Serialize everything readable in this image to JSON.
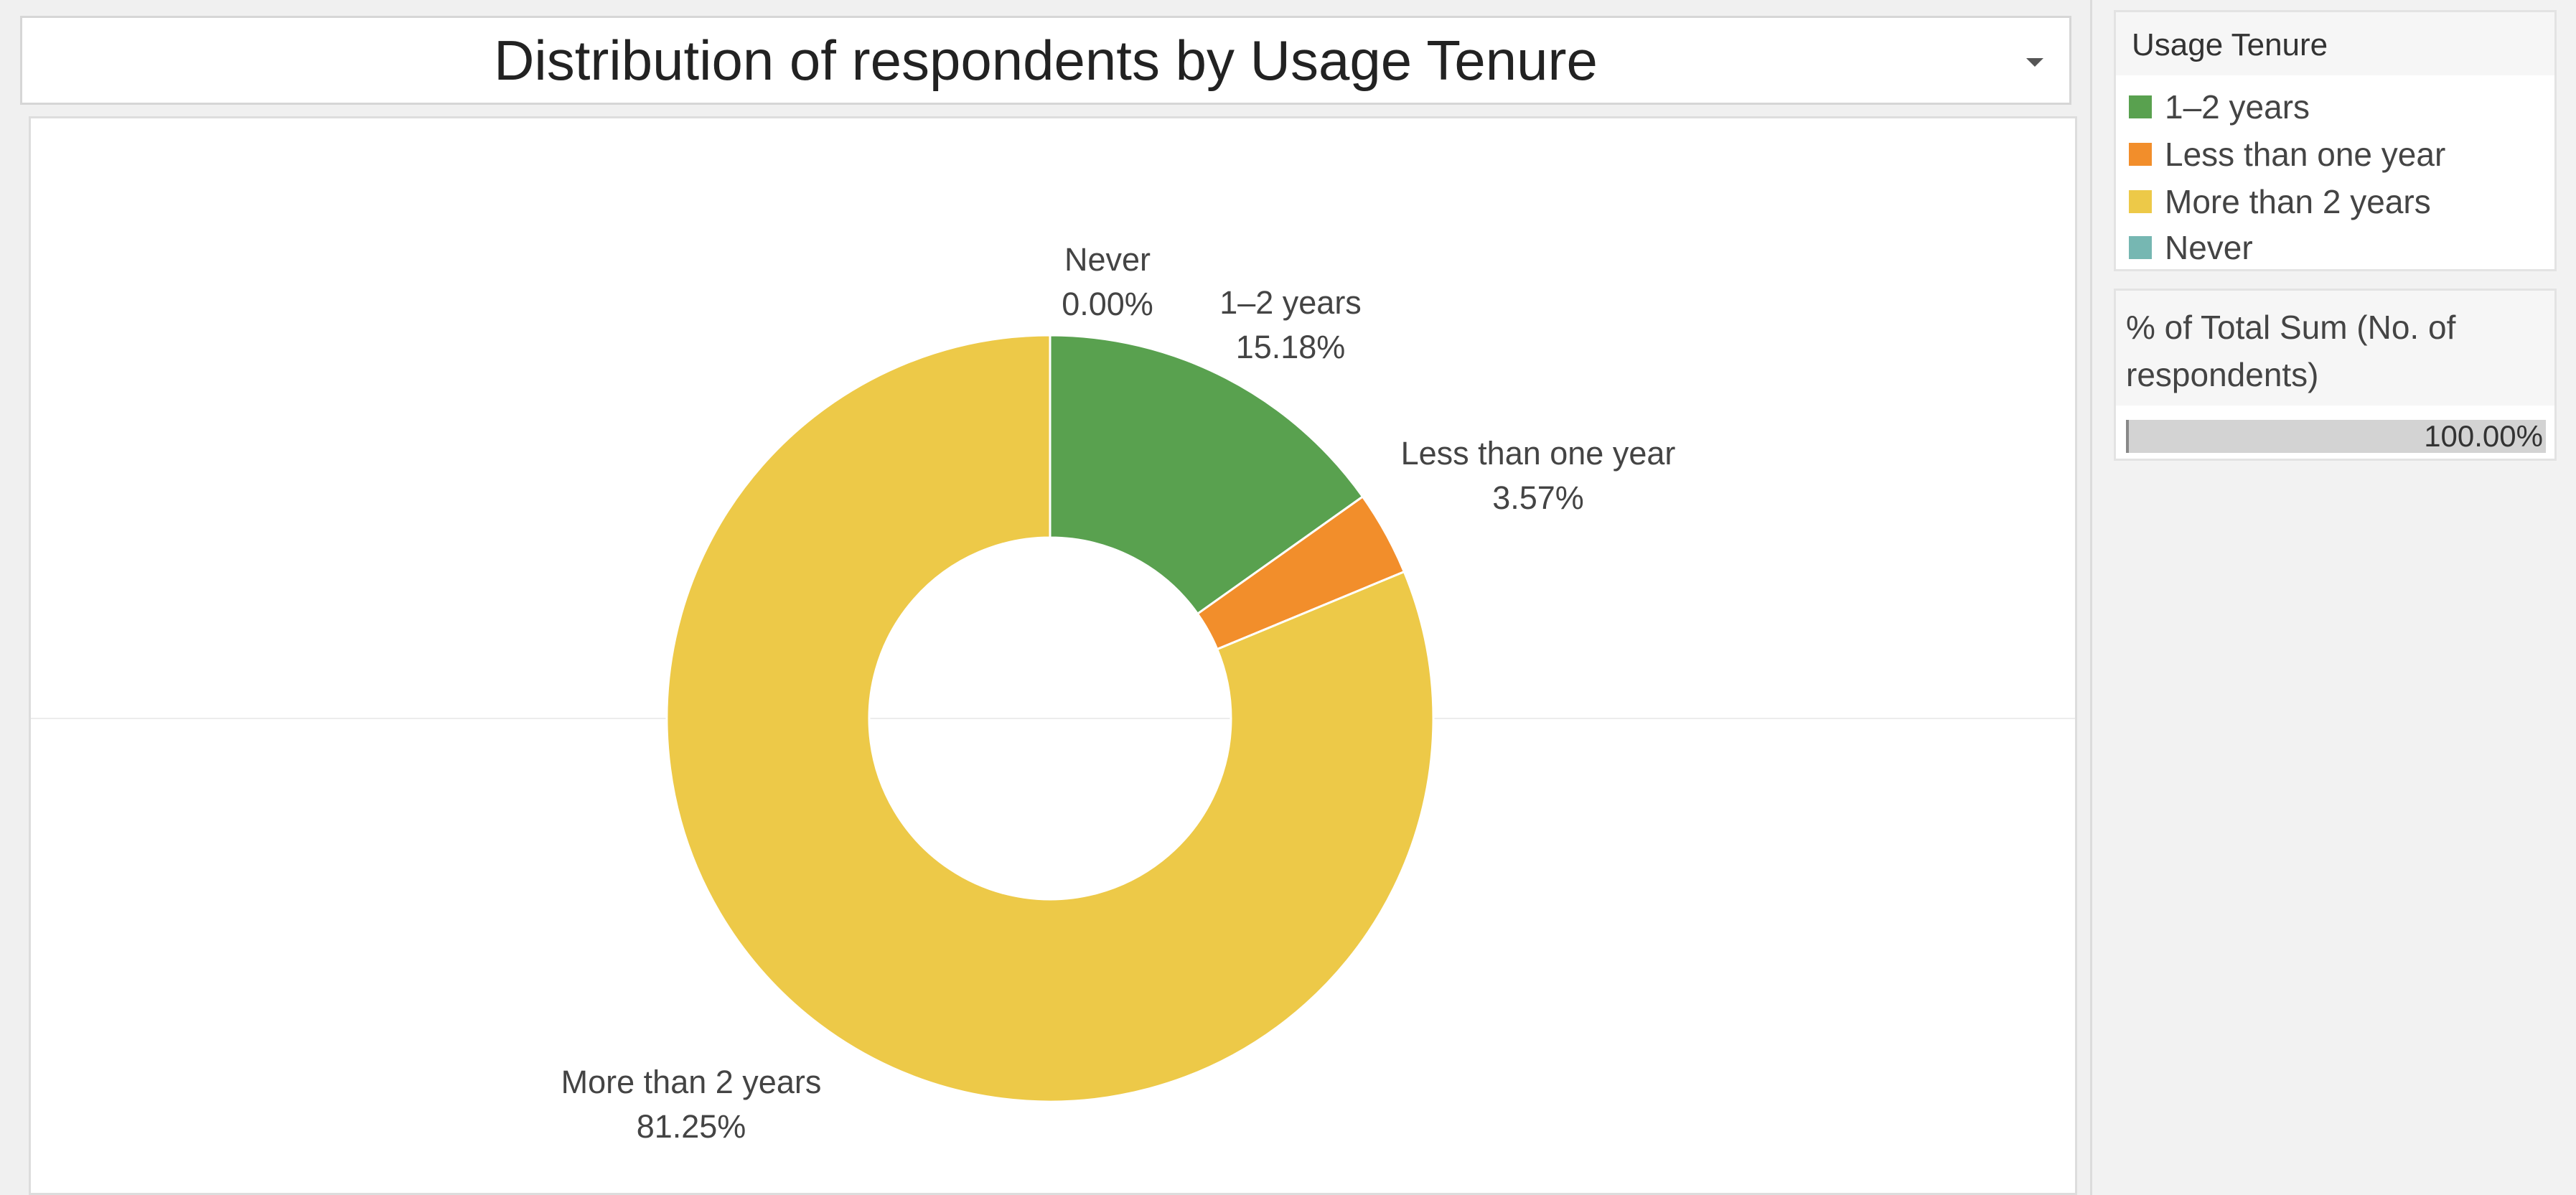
{
  "chart_data": {
    "type": "pie",
    "title": "Distribution of respondents by Usage Tenure",
    "slices": [
      {
        "label": "1–2  years",
        "value": 15.18,
        "value_label": "15.18%",
        "color": "#59a14f"
      },
      {
        "label": "Less than one year",
        "value": 3.57,
        "value_label": "3.57%",
        "color": "#f28e2b"
      },
      {
        "label": "More than 2 years",
        "value": 81.25,
        "value_label": "81.25%",
        "color": "#edc948"
      },
      {
        "label": "Never",
        "value": 0.0,
        "value_label": "0.00%",
        "color": "#76b7b2"
      }
    ],
    "donut": true
  },
  "legend": {
    "title": "Usage Tenure",
    "items": [
      {
        "label": "1–2 years",
        "color": "#59a14f"
      },
      {
        "label": "Less than one year",
        "color": "#f28e2b"
      },
      {
        "label": "More than 2 years",
        "color": "#edc948"
      },
      {
        "label": "Never",
        "color": "#76b7b2"
      }
    ]
  },
  "measure": {
    "title": "% of Total Sum (No. of respondents)",
    "value": "100.00%"
  }
}
